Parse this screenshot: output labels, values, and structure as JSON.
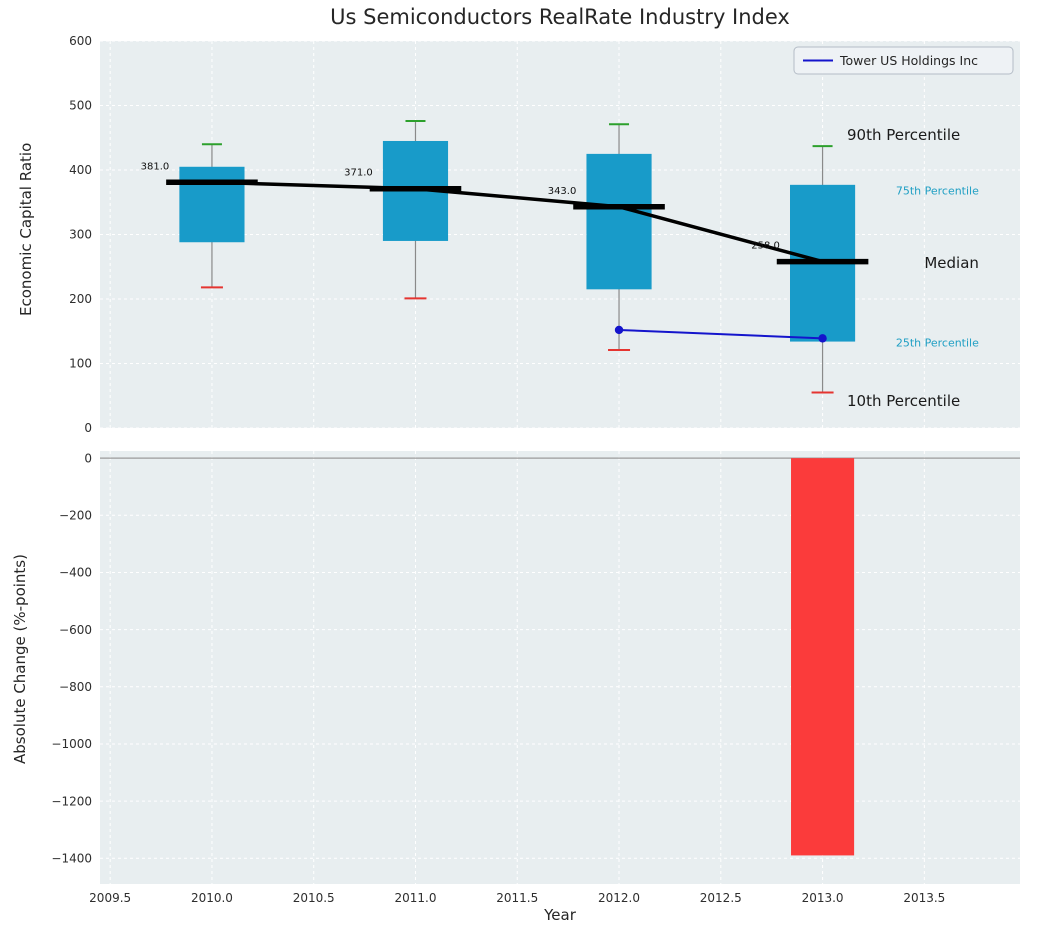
{
  "title": "Us Semiconductors RealRate Industry Index",
  "legend": {
    "label": "Tower US Holdings Inc"
  },
  "colors": {
    "box": "#189bc9",
    "median": "#000000",
    "trend_line": "#000000",
    "company_line": "#1414cc",
    "cap_top": "#2ca02c",
    "cap_bottom": "#e53430",
    "whisker": "#8a8a8a",
    "negative_bar": "#fb3b3b",
    "plot_bg": "#e8eef0",
    "grid": "#ffffff",
    "zero_line": "#9a9a9a",
    "annotation_dark": "#1a1a1a",
    "annotation_accent": "#1f9fc4",
    "legend_bg": "#eef2f5",
    "legend_border": "#b4bcc6"
  },
  "chart_data": [
    {
      "type": "boxplot",
      "ylabel": "Economic Capital Ratio",
      "xlim": [
        2009.45,
        2013.97
      ],
      "ylim": [
        0,
        600
      ],
      "xticks": [
        2009.5,
        2010.0,
        2010.5,
        2011.0,
        2011.5,
        2012.0,
        2012.5,
        2013.0,
        2013.5
      ],
      "yticks": [
        0,
        100,
        200,
        300,
        400,
        500,
        600
      ],
      "grid": true,
      "legend_position": "upper right",
      "boxes": [
        {
          "x": 2010,
          "p10": 218,
          "p25": 288,
          "median": 381,
          "p75": 405,
          "p90": 440,
          "median_label": "381.0"
        },
        {
          "x": 2011,
          "p10": 201,
          "p25": 290,
          "median": 371,
          "p75": 445,
          "p90": 476,
          "median_label": "371.0"
        },
        {
          "x": 2012,
          "p10": 121,
          "p25": 215,
          "median": 343,
          "p75": 425,
          "p90": 471,
          "median_label": "343.0"
        },
        {
          "x": 2013,
          "p10": 55,
          "p25": 134,
          "median": 258,
          "p75": 377,
          "p90": 437,
          "median_label": "258.0"
        }
      ],
      "median_trend": [
        [
          2010,
          381
        ],
        [
          2011,
          371
        ],
        [
          2012,
          343
        ],
        [
          2013,
          258
        ]
      ],
      "series": [
        {
          "name": "Tower US Holdings Inc",
          "x": [
            2012,
            2013
          ],
          "y": [
            152,
            139
          ]
        }
      ],
      "annotations": [
        {
          "text": "90th Percentile",
          "x": 2013.12,
          "y": 455,
          "size": 15,
          "color": "#1a1a1a"
        },
        {
          "text": "75th Percentile",
          "x": 2013.36,
          "y": 368,
          "size": 11,
          "color": "#1f9fc4"
        },
        {
          "text": "Median",
          "x": 2013.5,
          "y": 256,
          "size": 15,
          "color": "#1a1a1a"
        },
        {
          "text": "25th Percentile",
          "x": 2013.36,
          "y": 132,
          "size": 11,
          "color": "#1f9fc4"
        },
        {
          "text": "10th Percentile",
          "x": 2013.12,
          "y": 42,
          "size": 15,
          "color": "#1a1a1a"
        }
      ]
    },
    {
      "type": "bar",
      "ylabel": "Absolute Change (%-points)",
      "xlabel": "Year",
      "ylim": [
        -1490,
        25
      ],
      "yticks": [
        0,
        -200,
        -400,
        -600,
        -800,
        -1000,
        -1200,
        -1400
      ],
      "grid": true,
      "bars": [
        {
          "x": 2013,
          "value": -1390
        }
      ],
      "bar_width": 0.31
    }
  ]
}
